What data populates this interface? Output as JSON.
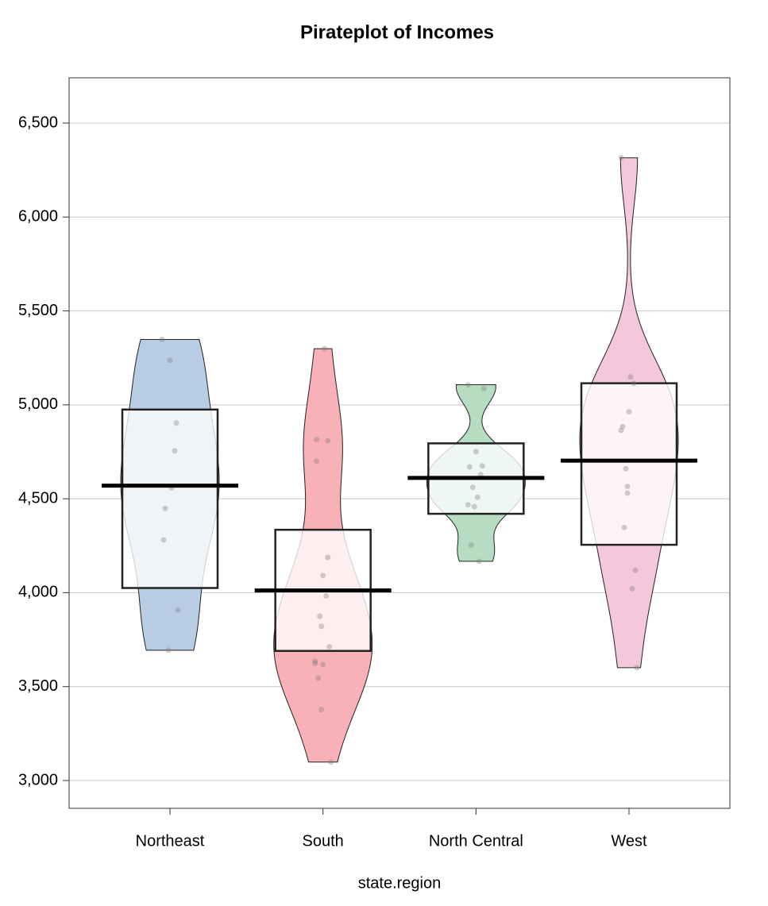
{
  "chart_data": {
    "type": "pirateplot",
    "title": "Pirateplot of Incomes",
    "x_label": "state.region",
    "categories": [
      "Northeast",
      "South",
      "North Central",
      "West"
    ],
    "colors": [
      "#b8cce4",
      "#f9b1b8",
      "#b6dcc2",
      "#f5c7dd"
    ],
    "points": [
      [
        5348,
        3694,
        4755,
        4281,
        5237,
        4903,
        4449,
        4558,
        3907
      ],
      [
        3624,
        3378,
        4809,
        4815,
        4091,
        3712,
        3545,
        5299,
        3098,
        3875,
        3983,
        3635,
        3821,
        4188,
        4701,
        3617
      ],
      [
        5107,
        4458,
        4628,
        4669,
        4751,
        4675,
        4254,
        4508,
        5087,
        4561,
        4167,
        4468
      ],
      [
        6315,
        4530,
        5114,
        4884,
        4963,
        4119,
        4347,
        5149,
        3601,
        4660,
        4022,
        4864,
        4566
      ]
    ],
    "means": [
      4570,
      4012,
      4611,
      4703
    ],
    "inf_low": [
      4025,
      3690,
      4420,
      4255
    ],
    "inf_high": [
      4975,
      4335,
      4795,
      5115
    ],
    "ylim": [
      2852,
      6741
    ],
    "yticks": [
      {
        "value": 3000,
        "label": "3,000"
      },
      {
        "value": 3500,
        "label": "3,500"
      },
      {
        "value": 4000,
        "label": "4,000"
      },
      {
        "value": 4500,
        "label": "4,500"
      },
      {
        "value": 5000,
        "label": "5,000"
      },
      {
        "value": 5500,
        "label": "5,500"
      },
      {
        "value": 6000,
        "label": "6,000"
      },
      {
        "value": 6500,
        "label": "6,500"
      }
    ],
    "grid": true
  }
}
